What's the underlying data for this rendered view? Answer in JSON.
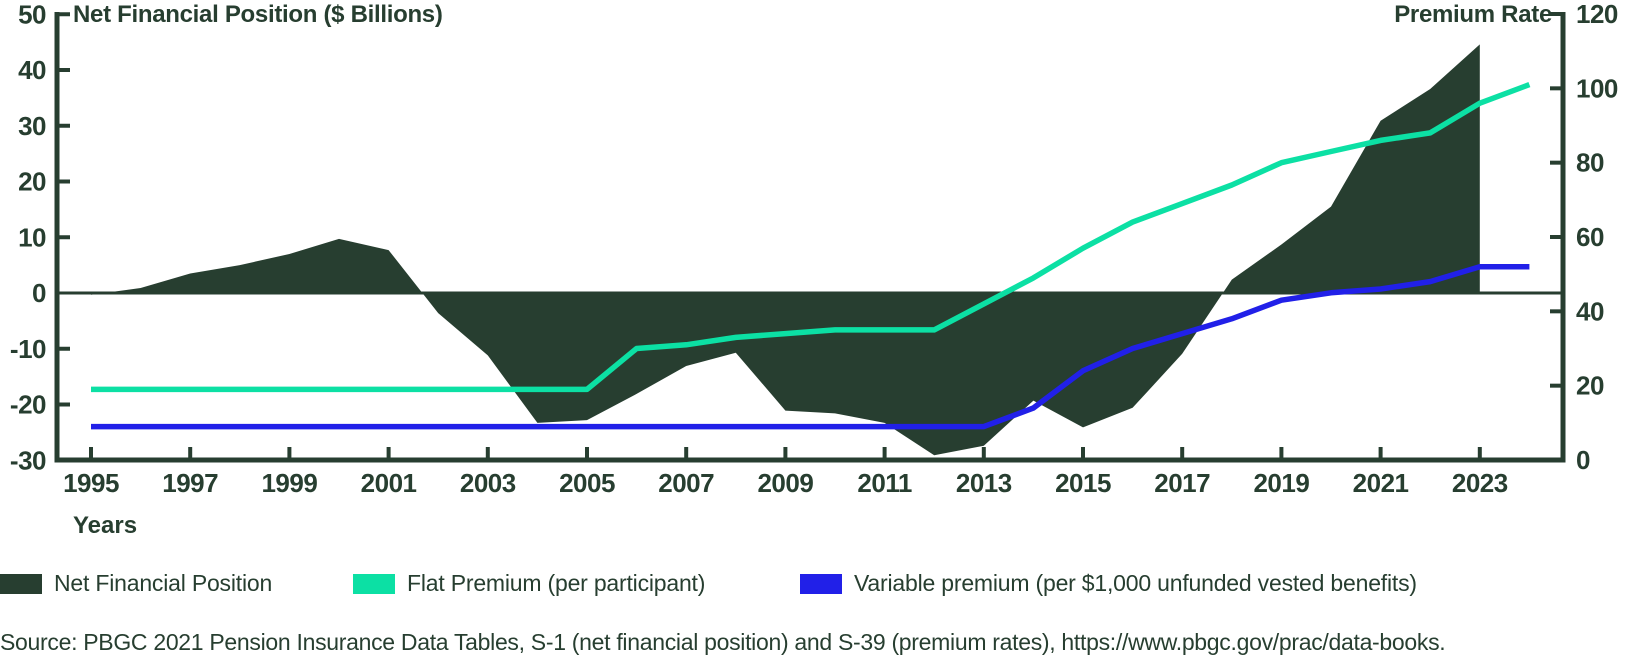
{
  "titles": {
    "left": "Net Financial Position ($ Billions)",
    "right": "Premium Rate"
  },
  "x_axis": {
    "label": "Years"
  },
  "legend": {
    "items": [
      {
        "label": "Net Financial Position",
        "color_key": "area"
      },
      {
        "label": "Flat Premium (per participant)",
        "color_key": "flat_premium"
      },
      {
        "label": "Variable premium (per $1,000 unfunded vested benefits)",
        "color_key": "variable_premium"
      }
    ]
  },
  "source_note": "Source: PBGC 2021 Pension Insurance Data Tables, S-1 (net financial position) and S-39 (premium rates), https://www.pbgc.gov/prac/data-books.",
  "colors": {
    "ink": "#273e30",
    "area": "#273e30",
    "flat_premium": "#0ce0a4",
    "variable_premium": "#2120e8",
    "background": "#ffffff"
  },
  "chart_data": {
    "type": "area",
    "subtype": "dual-axis combo: area (left axis) + two lines (right axis)",
    "title": "",
    "xlabel": "Years",
    "grid": false,
    "legend_position": "bottom",
    "x_ticks": [
      1995,
      1997,
      1999,
      2001,
      2003,
      2005,
      2007,
      2009,
      2011,
      2013,
      2015,
      2017,
      2019,
      2021,
      2023
    ],
    "left_axis": {
      "title": "Net Financial Position ($ Billions)",
      "min": -30,
      "max": 50,
      "tick_step": 10,
      "ticks": [
        50,
        40,
        30,
        20,
        10,
        0,
        -10,
        -20,
        -30
      ]
    },
    "right_axis": {
      "title": "Premium Rate",
      "min": 0,
      "max": 120,
      "tick_step": 20,
      "ticks": [
        120,
        100,
        80,
        60,
        40,
        20,
        0
      ]
    },
    "series": [
      {
        "name": "Net Financial Position",
        "type": "area",
        "axis": "left",
        "baseline": 0,
        "years": [
          1995,
          1996,
          1997,
          1998,
          1999,
          2000,
          2001,
          2002,
          2003,
          2004,
          2005,
          2006,
          2007,
          2008,
          2009,
          2010,
          2011,
          2012,
          2013,
          2014,
          2015,
          2016,
          2017,
          2018,
          2019,
          2020,
          2021,
          2022,
          2023
        ],
        "values": [
          -0.3,
          0.9,
          3.5,
          5.0,
          7.0,
          9.7,
          7.7,
          -3.6,
          -11.2,
          -23.3,
          -22.8,
          -18.1,
          -13.1,
          -10.7,
          -21.1,
          -21.6,
          -23.3,
          -29.1,
          -27.4,
          -19.3,
          -24.1,
          -20.6,
          -10.9,
          2.4,
          8.7,
          15.5,
          30.9,
          36.6,
          44.6
        ]
      },
      {
        "name": "Flat Premium (per participant)",
        "type": "line",
        "axis": "right",
        "years": [
          1995,
          1996,
          1997,
          1998,
          1999,
          2000,
          2001,
          2002,
          2003,
          2004,
          2005,
          2006,
          2007,
          2008,
          2009,
          2010,
          2011,
          2012,
          2013,
          2014,
          2015,
          2016,
          2017,
          2018,
          2019,
          2020,
          2021,
          2022,
          2023,
          2024
        ],
        "values": [
          19,
          19,
          19,
          19,
          19,
          19,
          19,
          19,
          19,
          19,
          19,
          30,
          31,
          33,
          34,
          35,
          35,
          35,
          42,
          49,
          57,
          64,
          69,
          74,
          80,
          83,
          86,
          88,
          96,
          101
        ]
      },
      {
        "name": "Variable premium (per $1,000 unfunded vested benefits)",
        "type": "line",
        "axis": "right",
        "years": [
          1995,
          1996,
          1997,
          1998,
          1999,
          2000,
          2001,
          2002,
          2003,
          2004,
          2005,
          2006,
          2007,
          2008,
          2009,
          2010,
          2011,
          2012,
          2013,
          2014,
          2015,
          2016,
          2017,
          2018,
          2019,
          2020,
          2021,
          2022,
          2023,
          2024
        ],
        "values": [
          9,
          9,
          9,
          9,
          9,
          9,
          9,
          9,
          9,
          9,
          9,
          9,
          9,
          9,
          9,
          9,
          9,
          9,
          9,
          14,
          24,
          30,
          34,
          38,
          43,
          45,
          46,
          48,
          52,
          52
        ]
      }
    ]
  }
}
